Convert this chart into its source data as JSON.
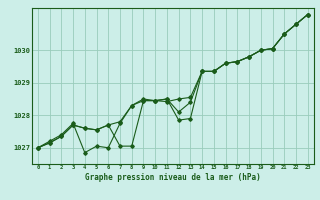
{
  "title": "",
  "xlabel": "Graphe pression niveau de la mer (hPa)",
  "bg_color": "#cceee8",
  "grid_color": "#99ccbb",
  "line_color": "#1a5c1a",
  "marker": "D",
  "markersize": 1.8,
  "linewidth": 0.8,
  "xlim": [
    -0.5,
    23.5
  ],
  "ylim": [
    1026.5,
    1031.3
  ],
  "xticks": [
    0,
    1,
    2,
    3,
    4,
    5,
    6,
    7,
    8,
    9,
    10,
    11,
    12,
    13,
    14,
    15,
    16,
    17,
    18,
    19,
    20,
    21,
    22,
    23
  ],
  "yticks": [
    1027,
    1028,
    1029,
    1030
  ],
  "series1": [
    1027.0,
    1027.15,
    1027.35,
    1027.7,
    1027.6,
    1027.55,
    1027.7,
    1027.8,
    1028.3,
    1028.45,
    1028.45,
    1028.42,
    1028.5,
    1028.55,
    1029.35,
    1029.35,
    1029.6,
    1029.65,
    1029.8,
    1030.0,
    1030.05,
    1030.5,
    1030.8,
    1031.1
  ],
  "series2": [
    1027.0,
    1027.2,
    1027.4,
    1027.75,
    1026.85,
    1027.05,
    1027.0,
    1027.75,
    1028.3,
    1028.5,
    1028.45,
    1028.5,
    1028.1,
    1028.4,
    1029.35,
    1029.35,
    1029.6,
    1029.65,
    1029.8,
    1030.0,
    1030.05,
    1030.5,
    1030.8,
    1031.1
  ],
  "series3": [
    1027.0,
    1027.15,
    1027.35,
    1027.7,
    1027.6,
    1027.55,
    1027.7,
    1027.05,
    1027.05,
    1028.45,
    1028.45,
    1028.5,
    1027.85,
    1027.9,
    1029.35,
    1029.35,
    1029.6,
    1029.65,
    1029.8,
    1030.0,
    1030.05,
    1030.5,
    1030.8,
    1031.1
  ]
}
